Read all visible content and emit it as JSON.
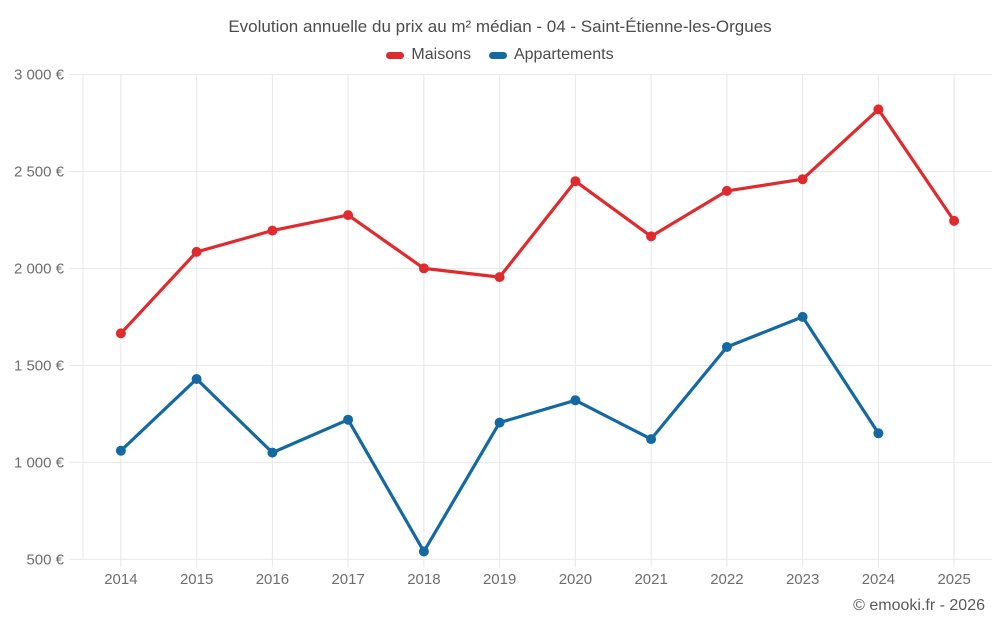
{
  "chart_data": {
    "type": "line",
    "title": "Evolution annuelle du prix au m² médian - 04 - Saint-Étienne-les-Orgues",
    "categories": [
      "2014",
      "2015",
      "2016",
      "2017",
      "2018",
      "2019",
      "2020",
      "2021",
      "2022",
      "2023",
      "2024",
      "2025"
    ],
    "series": [
      {
        "name": "Maisons",
        "color": "#df2b2e",
        "values": [
          1665,
          2085,
          2195,
          2275,
          2000,
          1955,
          2450,
          2165,
          2400,
          2460,
          2820,
          2245
        ]
      },
      {
        "name": "Appartements",
        "color": "#1569a3",
        "values": [
          1060,
          1430,
          1050,
          1220,
          540,
          1205,
          1320,
          1120,
          1595,
          1750,
          1150,
          null
        ]
      }
    ],
    "xlabel": "",
    "ylabel": "",
    "ylim": [
      500,
      3000
    ],
    "y_ticks": [
      3000,
      2500,
      2000,
      1500,
      1000,
      500
    ],
    "y_tick_labels": [
      "3 000 €",
      "2 500 €",
      "2 000 €",
      "1 500 €",
      "1 000 €",
      "500 €"
    ],
    "grid": "on",
    "legend_position": "top"
  },
  "footer": {
    "watermark": "© emooki.fr - 2026"
  },
  "colors": {
    "grid": "#e8e8e8",
    "axis_text": "#6e6e6e",
    "title_text": "#4c4c4c",
    "watermark_text": "#5a5a5a"
  }
}
